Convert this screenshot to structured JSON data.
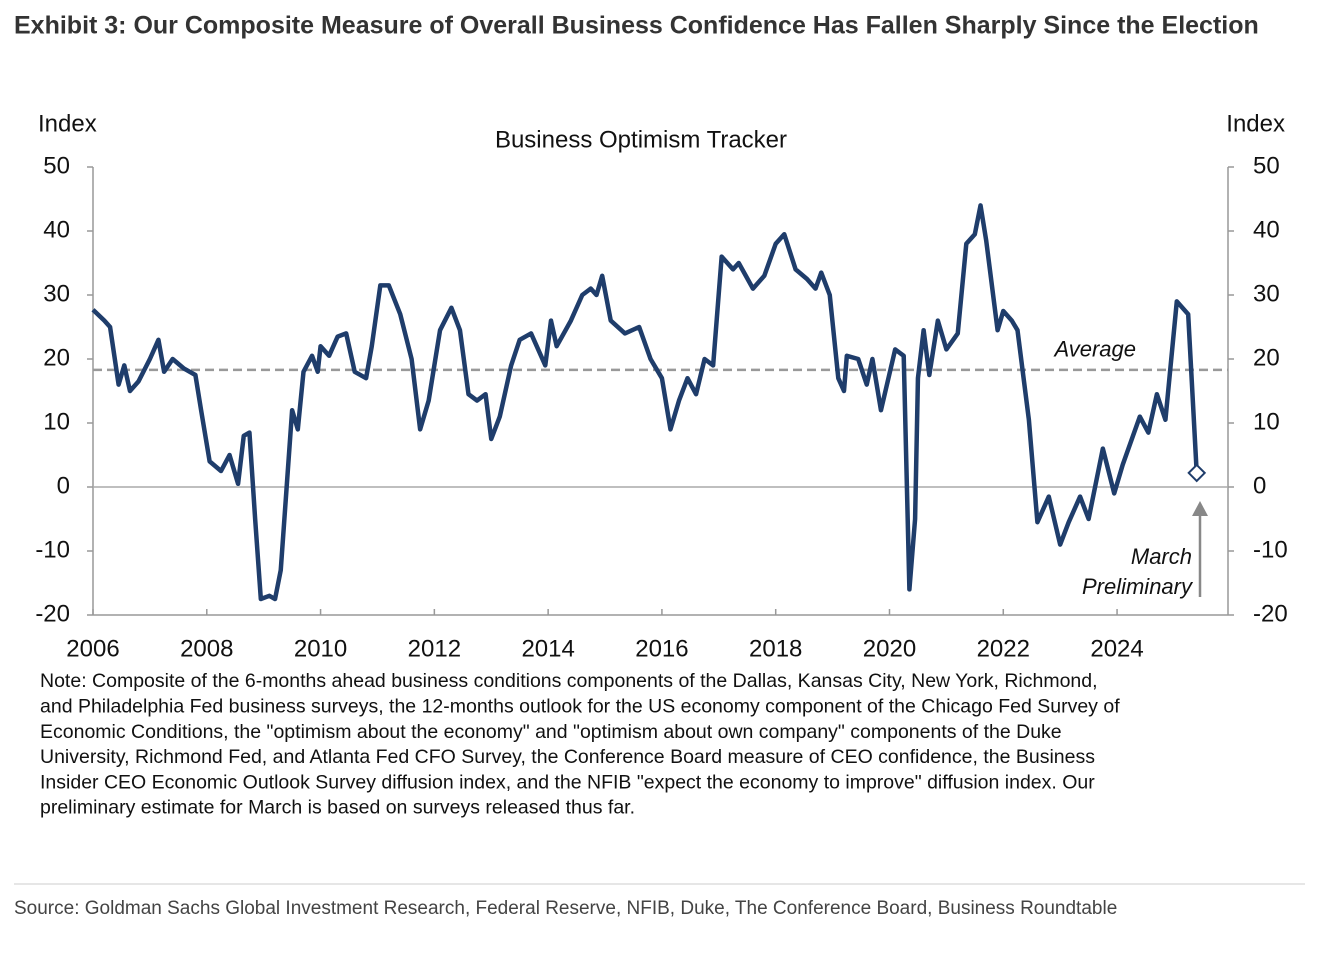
{
  "header": {
    "title": "Exhibit 3: Our Composite Measure of Overall Business Confidence Has Fallen Sharply Since the Election"
  },
  "chart_data": {
    "type": "line",
    "title": "Business Optimism Tracker",
    "ylabel": "Index",
    "y2label": "Index",
    "color": "#1f3d6b",
    "x": [
      2006.0,
      2006.2,
      2006.3,
      2006.45,
      2006.55,
      2006.65,
      2006.8,
      2007.0,
      2007.15,
      2007.25,
      2007.4,
      2007.6,
      2007.8,
      2007.9,
      2008.05,
      2008.25,
      2008.4,
      2008.55,
      2008.65,
      2008.75,
      2008.85,
      2008.95,
      2009.1,
      2009.2,
      2009.3,
      2009.4,
      2009.5,
      2009.6,
      2009.7,
      2009.85,
      2009.95,
      2010.0,
      2010.15,
      2010.3,
      2010.45,
      2010.6,
      2010.8,
      2010.9,
      2011.05,
      2011.2,
      2011.4,
      2011.6,
      2011.75,
      2011.9,
      2012.1,
      2012.3,
      2012.45,
      2012.6,
      2012.75,
      2012.9,
      2013.0,
      2013.15,
      2013.35,
      2013.5,
      2013.7,
      2013.95,
      2014.05,
      2014.15,
      2014.4,
      2014.6,
      2014.75,
      2014.85,
      2014.95,
      2015.1,
      2015.35,
      2015.6,
      2015.8,
      2016.0,
      2016.15,
      2016.3,
      2016.45,
      2016.6,
      2016.75,
      2016.9,
      2017.05,
      2017.25,
      2017.35,
      2017.6,
      2017.8,
      2018.0,
      2018.15,
      2018.35,
      2018.55,
      2018.7,
      2018.8,
      2018.95,
      2019.1,
      2019.2,
      2019.25,
      2019.45,
      2019.6,
      2019.7,
      2019.85,
      2020.1,
      2020.25,
      2020.35,
      2020.45,
      2020.5,
      2020.6,
      2020.7,
      2020.85,
      2021.0,
      2021.2,
      2021.35,
      2021.5,
      2021.6,
      2021.7,
      2021.9,
      2022.0,
      2022.15,
      2022.25,
      2022.45,
      2022.6,
      2022.8,
      2023.0,
      2023.15,
      2023.35,
      2023.5,
      2023.75,
      2023.95,
      2024.1,
      2024.4,
      2024.55,
      2024.7,
      2024.85,
      2025.05,
      2025.25,
      2025.4
    ],
    "values": [
      27.7,
      26,
      25,
      16,
      19,
      15,
      16.5,
      20,
      23,
      18,
      20,
      18.5,
      17.5,
      12,
      4,
      2.5,
      5,
      0.5,
      8,
      8.5,
      -5,
      -17.5,
      -17,
      -17.5,
      -13,
      -0.5,
      12,
      9,
      18,
      20.5,
      18,
      22,
      20.5,
      23.5,
      24,
      18,
      17,
      22,
      31.5,
      31.5,
      27,
      20,
      9,
      13.5,
      24.5,
      28,
      24.5,
      14.5,
      13.5,
      14.5,
      7.5,
      11,
      19,
      23,
      24,
      19,
      26,
      22,
      26,
      30,
      31,
      30,
      33,
      26,
      24,
      25,
      20,
      17,
      9,
      13.5,
      17,
      14.5,
      20,
      19,
      36,
      34,
      35,
      31,
      33,
      38,
      39.5,
      34,
      32.5,
      31,
      33.5,
      30,
      17,
      15,
      20.5,
      20,
      16,
      20,
      12,
      21.5,
      20.5,
      -16,
      -5,
      17,
      24.5,
      17.5,
      26,
      21.5,
      24,
      38,
      39.5,
      44,
      38.5,
      24.5,
      27.5,
      26,
      24.5,
      10.5,
      -5.5,
      -1.5,
      -9,
      -5.5,
      -1.5,
      -5,
      6,
      -1,
      3.5,
      11,
      8.5,
      14.5,
      10.5,
      29,
      27,
      2.2
    ],
    "xlim": [
      2006,
      2025.95
    ],
    "xticks": [
      2006,
      2008,
      2010,
      2012,
      2014,
      2016,
      2018,
      2020,
      2022,
      2024
    ],
    "ylim": [
      -20,
      50
    ],
    "yticks": [
      -20,
      -10,
      0,
      10,
      20,
      30,
      40,
      50
    ],
    "y2lim": [
      -20,
      50
    ],
    "y2ticks": [
      -20,
      -10,
      0,
      10,
      20,
      30,
      40,
      50
    ],
    "average": 18.3,
    "average_label": "Average",
    "annotation": [
      "March",
      "Preliminary"
    ]
  },
  "note": [
    "Note: Composite of the 6-months ahead business conditions components of the Dallas, Kansas City, New York, Richmond,",
    "and Philadelphia Fed business surveys, the 12-months outlook for the US economy component of the Chicago Fed Survey of",
    "Economic Conditions, the \"optimism about the economy\" and \"optimism about own company\" components of the Duke",
    "University, Richmond Fed, and Atlanta Fed CFO Survey, the Conference Board measure of CEO confidence, the Business",
    "Insider CEO Economic Outlook Survey diffusion index, and the NFIB \"expect the economy to improve\" diffusion index. Our",
    "preliminary estimate for March is based on surveys released thus far."
  ],
  "source": "Source: Goldman Sachs Global Investment Research, Federal Reserve, NFIB, Duke, The Conference Board, Business Roundtable"
}
